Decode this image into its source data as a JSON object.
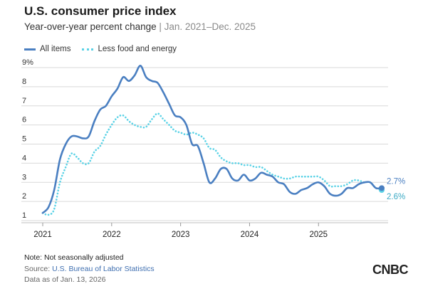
{
  "header": {
    "title": "U.S. consumer price index",
    "subtitle_main": "Year-over-year percent change",
    "subtitle_range": "Jan. 2021–Dec. 2025"
  },
  "legend": {
    "all_items": "All items",
    "core": "Less food and energy"
  },
  "footer": {
    "note": "Note: Not seasonally adjusted",
    "source_prefix": "Source: ",
    "source_link": "U.S. Bureau of Labor Statistics",
    "as_of": "Data as of Jan. 13, 2026",
    "logo": "CNBC"
  },
  "colors": {
    "all_items": "#4a7fc1",
    "core": "#5ad2e6",
    "grid": "#d9d9d9"
  },
  "chart_data": {
    "type": "line",
    "title": "U.S. consumer price index",
    "ylim": [
      1,
      9
    ],
    "y_ticks": [
      "1",
      "2",
      "3",
      "4",
      "5",
      "6",
      "7",
      "8",
      "9%"
    ],
    "x_ticks": [
      "2021",
      "2022",
      "2023",
      "2024",
      "2025"
    ],
    "x_start": "2021-01",
    "grid": "horizontal",
    "end_labels": {
      "all_items": "2.7%",
      "core": "2.6%"
    },
    "series": [
      {
        "name": "All items",
        "style": "solid",
        "values": [
          1.4,
          1.7,
          2.6,
          4.2,
          5.0,
          5.4,
          5.4,
          5.3,
          5.4,
          6.2,
          6.8,
          7.0,
          7.5,
          7.9,
          8.5,
          8.3,
          8.6,
          9.1,
          8.5,
          8.3,
          8.2,
          7.7,
          7.1,
          6.5,
          6.4,
          6.0,
          5.0,
          4.9,
          4.0,
          3.0,
          3.2,
          3.7,
          3.7,
          3.2,
          3.1,
          3.4,
          3.1,
          3.2,
          3.5,
          3.4,
          3.3,
          3.0,
          2.9,
          2.5,
          2.4,
          2.6,
          2.7,
          2.9,
          3.0,
          2.8,
          2.4,
          2.3,
          2.4,
          2.7,
          2.7,
          2.9,
          3.0,
          3.0,
          2.7,
          2.7
        ]
      },
      {
        "name": "Less food and energy",
        "style": "dotted",
        "values": [
          1.4,
          1.3,
          1.6,
          3.0,
          3.8,
          4.5,
          4.3,
          4.0,
          4.0,
          4.6,
          4.9,
          5.5,
          6.0,
          6.4,
          6.5,
          6.2,
          6.0,
          5.9,
          5.9,
          6.3,
          6.6,
          6.3,
          6.0,
          5.7,
          5.6,
          5.5,
          5.6,
          5.5,
          5.3,
          4.8,
          4.7,
          4.3,
          4.1,
          4.0,
          4.0,
          3.9,
          3.9,
          3.8,
          3.8,
          3.6,
          3.4,
          3.3,
          3.2,
          3.2,
          3.3,
          3.3,
          3.3,
          3.3,
          3.3,
          3.1,
          2.8,
          2.8,
          2.8,
          2.9,
          3.1,
          3.1,
          3.0,
          3.0,
          2.7,
          2.6
        ]
      }
    ]
  }
}
